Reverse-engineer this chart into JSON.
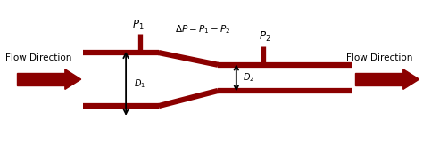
{
  "bg_color": "#ffffff",
  "pipe_color": "#8B0000",
  "text_color": "#000000",
  "fig_width": 4.74,
  "fig_height": 1.73,
  "dpi": 100,
  "label_p1": "$P_1$",
  "label_p2": "$P_2$",
  "label_delta": "$\\Delta P = P_1 - P_2$",
  "label_d1": "$D_1$",
  "label_d2": "$D_2$",
  "label_flow_left": "Flow Direction",
  "label_flow_right": "Flow Direction",
  "xlim": [
    0,
    10
  ],
  "ylim": [
    0,
    5
  ]
}
